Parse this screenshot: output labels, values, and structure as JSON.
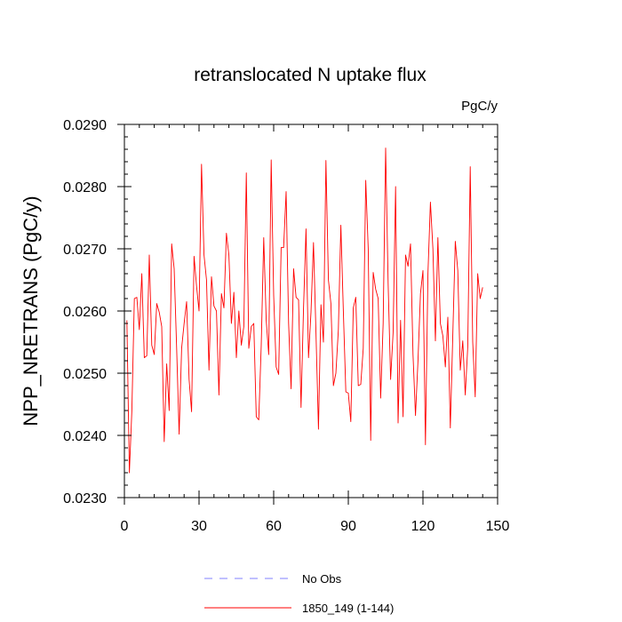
{
  "chart_data": {
    "type": "line",
    "title": "retranslocated N uptake flux",
    "units": "PgC/y",
    "xlabel": "",
    "ylabel": "NPP_NRETRANS  (PgC/y)",
    "xlim": [
      0,
      150
    ],
    "ylim": [
      0.023,
      0.029
    ],
    "xticks": [
      0,
      30,
      60,
      90,
      120,
      150
    ],
    "xtick_labels": [
      "0",
      "30",
      "60",
      "90",
      "120",
      "150"
    ],
    "yticks": [
      0.023,
      0.024,
      0.025,
      0.026,
      0.027,
      0.028,
      0.029
    ],
    "ytick_labels": [
      "0.0230",
      "0.0240",
      "0.0250",
      "0.0260",
      "0.0270",
      "0.0280",
      "0.0290"
    ],
    "grid": false,
    "legend_position": "bottom",
    "legend": [
      {
        "label": "No Obs",
        "color": "#8080ff",
        "style": "dashed"
      },
      {
        "label": "1850_149 (1-144)",
        "color": "#ff0000",
        "style": "solid"
      }
    ],
    "series": [
      {
        "name": "1850_149 (1-144)",
        "color": "#ff0000",
        "x": [
          1,
          2,
          3,
          4,
          5,
          6,
          7,
          8,
          9,
          10,
          11,
          12,
          13,
          14,
          15,
          16,
          17,
          18,
          19,
          20,
          21,
          22,
          23,
          24,
          25,
          26,
          27,
          28,
          29,
          30,
          31,
          32,
          33,
          34,
          35,
          36,
          37,
          38,
          39,
          40,
          41,
          42,
          43,
          44,
          45,
          46,
          47,
          48,
          49,
          50,
          51,
          52,
          53,
          54,
          55,
          56,
          57,
          58,
          59,
          60,
          61,
          62,
          63,
          64,
          65,
          66,
          67,
          68,
          69,
          70,
          71,
          72,
          73,
          74,
          75,
          76,
          77,
          78,
          79,
          80,
          81,
          82,
          83,
          84,
          85,
          86,
          87,
          88,
          89,
          90,
          91,
          92,
          93,
          94,
          95,
          96,
          97,
          98,
          99,
          100,
          101,
          102,
          103,
          104,
          105,
          106,
          107,
          108,
          109,
          110,
          111,
          112,
          113,
          114,
          115,
          116,
          117,
          118,
          119,
          120,
          121,
          122,
          123,
          124,
          125,
          126,
          127,
          128,
          129,
          130,
          131,
          132,
          133,
          134,
          135,
          136,
          137,
          138,
          139,
          140,
          141,
          142,
          143,
          144
        ],
        "values": [
          0.02585,
          0.0234,
          0.0244,
          0.0262,
          0.02622,
          0.0257,
          0.0266,
          0.02525,
          0.02528,
          0.0269,
          0.02545,
          0.0253,
          0.02612,
          0.02598,
          0.02575,
          0.0239,
          0.02515,
          0.0244,
          0.02708,
          0.02668,
          0.0254,
          0.02402,
          0.0254,
          0.0258,
          0.02615,
          0.0249,
          0.02438,
          0.02688,
          0.0264,
          0.026,
          0.02836,
          0.0269,
          0.0265,
          0.02505,
          0.02655,
          0.02608,
          0.026,
          0.02465,
          0.02628,
          0.02605,
          0.02725,
          0.0269,
          0.0258,
          0.0263,
          0.02525,
          0.026,
          0.02545,
          0.02575,
          0.02822,
          0.0254,
          0.02575,
          0.0258,
          0.0243,
          0.02425,
          0.02545,
          0.02718,
          0.02585,
          0.0253,
          0.02843,
          0.02625,
          0.0251,
          0.02498,
          0.02702,
          0.02702,
          0.02792,
          0.0258,
          0.02475,
          0.02668,
          0.02622,
          0.02618,
          0.02445,
          0.02605,
          0.02732,
          0.02525,
          0.02598,
          0.0271,
          0.02565,
          0.0241,
          0.0261,
          0.0255,
          0.02842,
          0.0265,
          0.02612,
          0.0248,
          0.025,
          0.0257,
          0.02738,
          0.026,
          0.0247,
          0.02468,
          0.02422,
          0.02605,
          0.02622,
          0.0248,
          0.02482,
          0.0254,
          0.0281,
          0.027,
          0.02392,
          0.02662,
          0.02635,
          0.0262,
          0.0246,
          0.0258,
          0.02862,
          0.02645,
          0.0249,
          0.02565,
          0.028,
          0.0242,
          0.02585,
          0.0243,
          0.0269,
          0.02672,
          0.02708,
          0.0253,
          0.02432,
          0.0252,
          0.02628,
          0.02665,
          0.02385,
          0.0266,
          0.02775,
          0.027,
          0.02552,
          0.02718,
          0.0258,
          0.0256,
          0.0251,
          0.0259,
          0.02412,
          0.02562,
          0.02712,
          0.02665,
          0.02505,
          0.02552,
          0.02465,
          0.02542,
          0.02832,
          0.0255,
          0.02462,
          0.0266,
          0.0262,
          0.02638
        ]
      }
    ]
  }
}
